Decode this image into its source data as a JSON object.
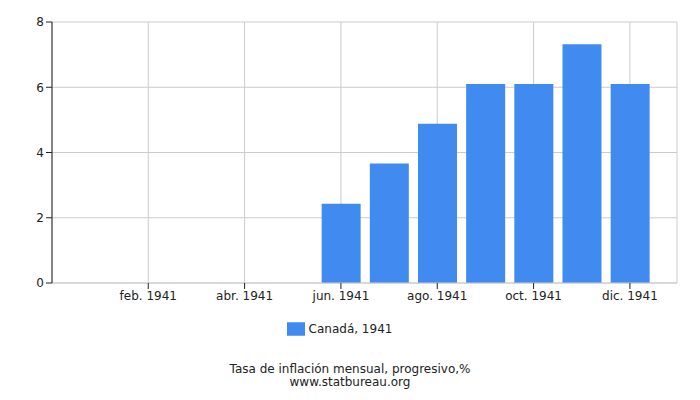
{
  "chart_data": {
    "type": "bar",
    "title": "Tasa de inflación mensual, progresivo,%",
    "subtitle": "www.statbureau.org",
    "categories": [
      null,
      "feb. 1941",
      null,
      "abr. 1941",
      null,
      "jun. 1941",
      null,
      "ago. 1941",
      null,
      "oct. 1941",
      null,
      "dic. 1941"
    ],
    "series": [
      {
        "name": "Canadá, 1941",
        "color": "#418bf0",
        "values": [
          0,
          0,
          0,
          0,
          0,
          2.43,
          3.66,
          4.88,
          6.1,
          6.1,
          7.32,
          6.1
        ]
      }
    ],
    "ylim": [
      0,
      8
    ],
    "yticks": [
      0,
      2,
      4,
      6,
      8
    ],
    "grid": true,
    "legend": "bottom"
  }
}
